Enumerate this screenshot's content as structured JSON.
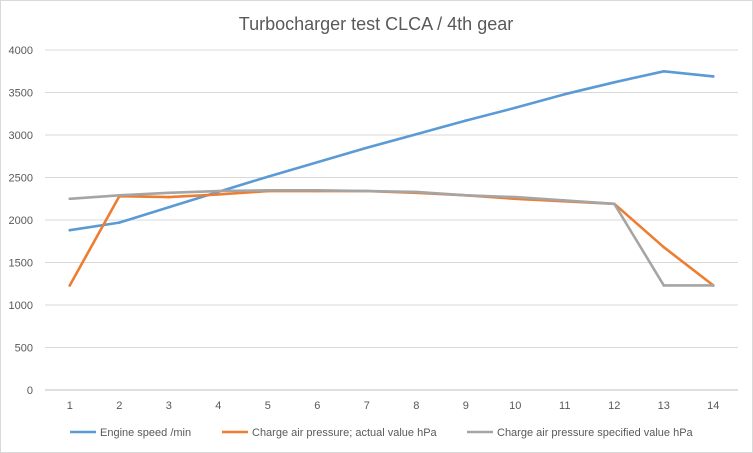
{
  "chart_data": {
    "type": "line",
    "title": "Turbocharger test CLCA / 4th gear",
    "xlabel": "",
    "ylabel": "",
    "categories": [
      "1",
      "2",
      "3",
      "4",
      "5",
      "6",
      "7",
      "8",
      "9",
      "10",
      "11",
      "12",
      "13",
      "14"
    ],
    "ylim": [
      0,
      4000
    ],
    "yticks": [
      0,
      500,
      1000,
      1500,
      2000,
      2500,
      3000,
      3500,
      4000
    ],
    "grid": true,
    "legend_position": "bottom",
    "series": [
      {
        "name": "Engine speed /min",
        "color": "#5b9bd5",
        "values": [
          1880,
          1970,
          2150,
          2330,
          2510,
          2680,
          2850,
          3010,
          3170,
          3320,
          3480,
          3620,
          3750,
          3690
        ]
      },
      {
        "name": "Charge air pressure; actual value  hPa",
        "color": "#ed7d31",
        "values": [
          1230,
          2280,
          2270,
          2300,
          2340,
          2340,
          2340,
          2320,
          2290,
          2250,
          2220,
          2190,
          1680,
          1230
        ]
      },
      {
        "name": "Charge air pressure specified value  hPa",
        "color": "#a5a5a5",
        "values": [
          2250,
          2290,
          2320,
          2340,
          2350,
          2350,
          2340,
          2330,
          2290,
          2270,
          2230,
          2190,
          1230,
          1230
        ]
      }
    ]
  }
}
